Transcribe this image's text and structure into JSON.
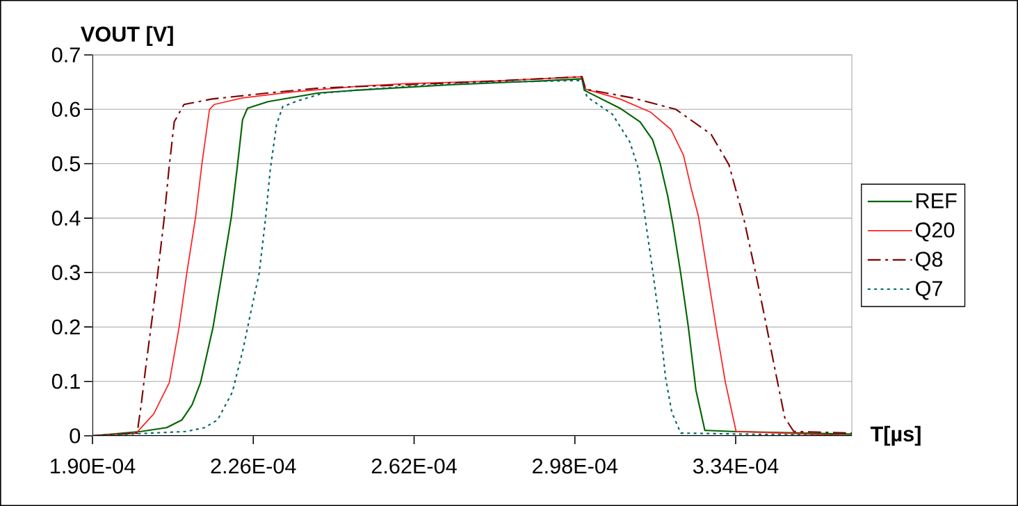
{
  "chart_data": {
    "type": "line",
    "ylabel": "VOUT [V]",
    "xlabel": "T[µs]",
    "xlim": [
      0.00019,
      0.00036
    ],
    "ylim": [
      0,
      0.7
    ],
    "xticks": [
      {
        "value": 0.00019,
        "label": "1.90E-04"
      },
      {
        "value": 0.000226,
        "label": "2.26E-04"
      },
      {
        "value": 0.000262,
        "label": "2.62E-04"
      },
      {
        "value": 0.000298,
        "label": "2.98E-04"
      },
      {
        "value": 0.000334,
        "label": "3.34E-04"
      }
    ],
    "yticks": [
      0,
      0.1,
      0.2,
      0.3,
      0.4,
      0.5,
      0.6,
      0.7
    ],
    "grid": "y",
    "legend": "right",
    "series": [
      {
        "name": "REF",
        "color": "#006400",
        "line_style": "solid",
        "x": [
          0.00019,
          0.0002009,
          0.0002066,
          0.00021,
          0.0002123,
          0.0002142,
          0.000217,
          0.000219,
          0.0002211,
          0.0002225,
          0.0002236,
          0.0002247,
          0.0002293,
          0.0002406,
          0.0002489,
          0.00027,
          0.00029,
          0.0002996,
          0.0003001,
          0.0003081,
          0.0003126,
          0.0003154,
          0.0003171,
          0.0003188,
          0.00032,
          0.0003217,
          0.0003234,
          0.0003251,
          0.0003271,
          0.0003331,
          0.00036
        ],
        "values": [
          0,
          0.008,
          0.015,
          0.029,
          0.057,
          0.098,
          0.2,
          0.298,
          0.403,
          0.5,
          0.581,
          0.602,
          0.614,
          0.63,
          0.635,
          0.645,
          0.652,
          0.656,
          0.635,
          0.602,
          0.577,
          0.544,
          0.5,
          0.44,
          0.386,
          0.298,
          0.2,
          0.084,
          0.01,
          0.008,
          0.003
        ]
      },
      {
        "name": "Q20",
        "color": "#ff2020",
        "line_style": "solid",
        "x": [
          0.00019,
          0.0001998,
          0.0002037,
          0.0002072,
          0.0002094,
          0.0002111,
          0.0002131,
          0.0002145,
          0.0002162,
          0.0002173,
          0.0002236,
          0.000235,
          0.0002489,
          0.00026,
          0.00028,
          0.0002996,
          0.0003004,
          0.0003081,
          0.0003149,
          0.0003195,
          0.0003223,
          0.000324,
          0.0003257,
          0.0003277,
          0.0003296,
          0.0003317,
          0.0003341,
          0.00036
        ],
        "values": [
          0,
          0.005,
          0.04,
          0.098,
          0.2,
          0.298,
          0.403,
          0.5,
          0.6,
          0.609,
          0.621,
          0.632,
          0.642,
          0.647,
          0.652,
          0.66,
          0.637,
          0.619,
          0.595,
          0.563,
          0.516,
          0.456,
          0.402,
          0.298,
          0.2,
          0.098,
          0.008,
          0
        ]
      },
      {
        "name": "Q8",
        "color": "#800000",
        "line_style": "dashdot",
        "x": [
          0.00019,
          0.0002,
          0.0002009,
          0.000202,
          0.0002034,
          0.0002046,
          0.000206,
          0.0002071,
          0.0002083,
          0.0002105,
          0.0002168,
          0.0002293,
          0.0002406,
          0.00026,
          0.00028,
          0.0002996,
          0.0003004,
          0.0003109,
          0.0003206,
          0.0003285,
          0.0003325,
          0.0003359,
          0.0003385,
          0.0003407,
          0.0003427,
          0.000345,
          0.000347,
          0.00036
        ],
        "values": [
          0,
          0.005,
          0.057,
          0.131,
          0.219,
          0.298,
          0.396,
          0.489,
          0.577,
          0.609,
          0.619,
          0.63,
          0.639,
          0.645,
          0.652,
          0.66,
          0.637,
          0.621,
          0.6,
          0.554,
          0.498,
          0.396,
          0.298,
          0.21,
          0.126,
          0.033,
          0.008,
          0.005
        ]
      },
      {
        "name": "Q7",
        "color": "#006666",
        "line_style": "dotted",
        "x": [
          0.00019,
          0.0002111,
          0.0002151,
          0.000218,
          0.0002213,
          0.0002236,
          0.0002256,
          0.0002273,
          0.0002287,
          0.0002298,
          0.0002312,
          0.0002326,
          0.0002361,
          0.0002418,
          0.000249,
          0.00026,
          0.00028,
          0.0002996,
          0.0003007,
          0.0003064,
          0.0003103,
          0.0003123,
          0.0003138,
          0.0003155,
          0.0003171,
          0.0003183,
          0.0003197,
          0.0003217,
          0.00036
        ],
        "values": [
          0,
          0.008,
          0.015,
          0.029,
          0.08,
          0.155,
          0.233,
          0.298,
          0.396,
          0.489,
          0.572,
          0.605,
          0.616,
          0.63,
          0.635,
          0.642,
          0.65,
          0.653,
          0.623,
          0.591,
          0.54,
          0.489,
          0.396,
          0.298,
          0.2,
          0.107,
          0.043,
          0.005,
          0
        ]
      }
    ]
  }
}
